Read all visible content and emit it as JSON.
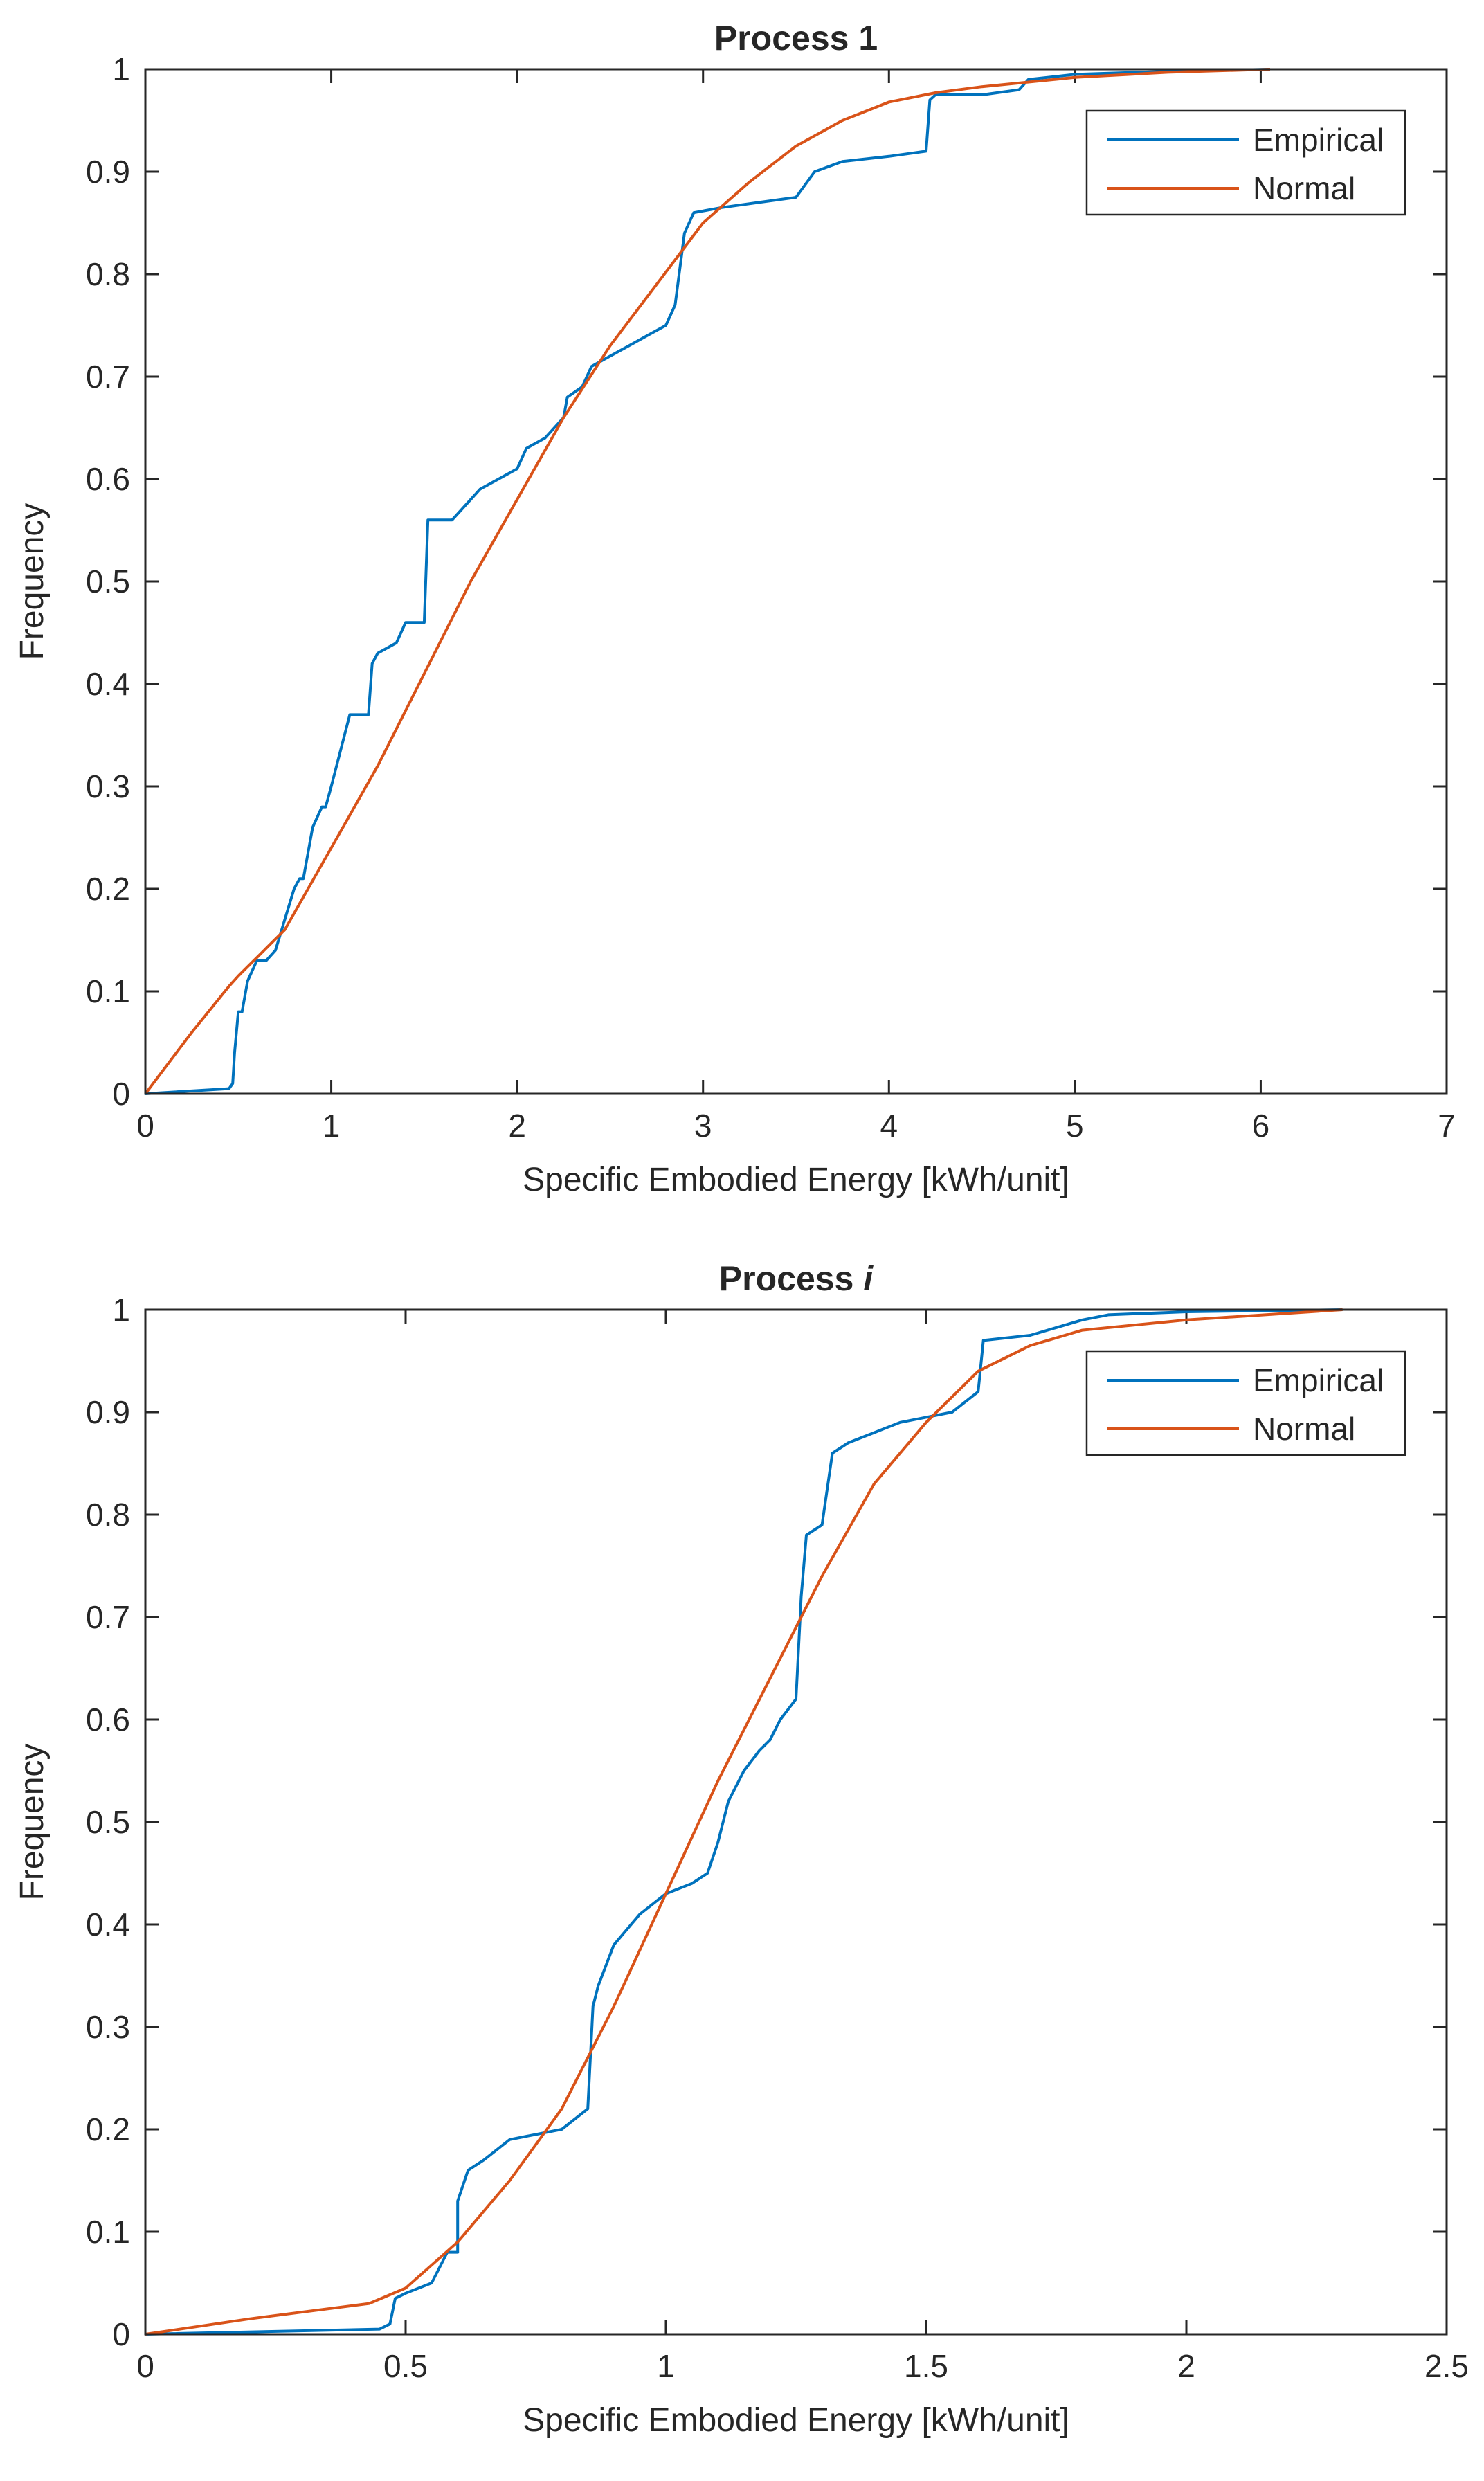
{
  "chart_data": [
    {
      "type": "line",
      "title": "Process 1",
      "title_italic_part": "",
      "xlabel": "Specific Embodied Energy [kWh/unit]",
      "ylabel": "Frequency",
      "xlim": [
        0,
        7
      ],
      "ylim": [
        0,
        1
      ],
      "xticks": [
        0,
        1,
        2,
        3,
        4,
        5,
        6,
        7
      ],
      "xtick_labels": [
        "0",
        "1",
        "2",
        "3",
        "4",
        "5",
        "6",
        "7"
      ],
      "yticks": [
        0,
        0.1,
        0.2,
        0.3,
        0.4,
        0.5,
        0.6,
        0.7,
        0.8,
        0.9,
        1
      ],
      "ytick_labels": [
        "0",
        "0.1",
        "0.2",
        "0.3",
        "0.4",
        "0.5",
        "0.6",
        "0.7",
        "0.8",
        "0.9",
        "1"
      ],
      "legend": {
        "position": "top-right",
        "entries": [
          "Empirical",
          "Normal"
        ]
      },
      "series": [
        {
          "name": "Empirical",
          "color": "#0072BD",
          "x": [
            0,
            0.45,
            0.47,
            0.48,
            0.5,
            0.52,
            0.55,
            0.6,
            0.62,
            0.65,
            0.7,
            0.8,
            0.83,
            0.85,
            0.9,
            0.95,
            0.97,
            1.0,
            1.1,
            1.2,
            1.22,
            1.25,
            1.35,
            1.4,
            1.5,
            1.52,
            1.65,
            1.7,
            1.75,
            1.8,
            1.9,
            2.0,
            2.05,
            2.15,
            2.25,
            2.27,
            2.35,
            2.4,
            2.5,
            2.6,
            2.7,
            2.8,
            2.85,
            2.9,
            2.95,
            3.1,
            3.3,
            3.5,
            3.6,
            3.75,
            4.0,
            4.2,
            4.22,
            4.25,
            4.5,
            4.7,
            4.75,
            5.0,
            5.5,
            6.05
          ],
          "y": [
            0,
            0.005,
            0.01,
            0.04,
            0.08,
            0.08,
            0.11,
            0.13,
            0.13,
            0.13,
            0.14,
            0.2,
            0.21,
            0.21,
            0.26,
            0.28,
            0.28,
            0.3,
            0.37,
            0.37,
            0.42,
            0.43,
            0.44,
            0.46,
            0.46,
            0.56,
            0.56,
            0.57,
            0.58,
            0.59,
            0.6,
            0.61,
            0.63,
            0.64,
            0.66,
            0.68,
            0.69,
            0.71,
            0.72,
            0.73,
            0.74,
            0.75,
            0.77,
            0.84,
            0.86,
            0.865,
            0.87,
            0.875,
            0.9,
            0.91,
            0.915,
            0.92,
            0.97,
            0.975,
            0.975,
            0.98,
            0.99,
            0.995,
            0.998,
            1
          ]
        },
        {
          "name": "Normal",
          "color": "#D95319",
          "x": [
            0,
            0.25,
            0.45,
            0.5,
            0.75,
            1.0,
            1.25,
            1.5,
            1.75,
            2.0,
            2.25,
            2.5,
            2.75,
            3.0,
            3.25,
            3.5,
            3.75,
            4.0,
            4.25,
            4.5,
            5.0,
            5.5,
            6.05
          ],
          "y": [
            0,
            0.06,
            0.105,
            0.115,
            0.16,
            0.24,
            0.32,
            0.41,
            0.5,
            0.58,
            0.66,
            0.73,
            0.79,
            0.85,
            0.89,
            0.925,
            0.95,
            0.968,
            0.977,
            0.983,
            0.992,
            0.997,
            1
          ]
        }
      ]
    },
    {
      "type": "line",
      "title": "Process ",
      "title_italic_part": "i",
      "xlabel": "Specific Embodied Energy [kWh/unit]",
      "ylabel": "Frequency",
      "xlim": [
        0,
        2.5
      ],
      "ylim": [
        0,
        1
      ],
      "xticks": [
        0,
        0.5,
        1,
        1.5,
        2,
        2.5
      ],
      "xtick_labels": [
        "0",
        "0.5",
        "1",
        "1.5",
        "2",
        "2.5"
      ],
      "yticks": [
        0,
        0.1,
        0.2,
        0.3,
        0.4,
        0.5,
        0.6,
        0.7,
        0.8,
        0.9,
        1
      ],
      "ytick_labels": [
        "0",
        "0.1",
        "0.2",
        "0.3",
        "0.4",
        "0.5",
        "0.6",
        "0.7",
        "0.8",
        "0.9",
        "1"
      ],
      "legend": {
        "position": "top-right",
        "entries": [
          "Empirical",
          "Normal"
        ]
      },
      "series": [
        {
          "name": "Empirical",
          "color": "#0072BD",
          "x": [
            0,
            0.45,
            0.47,
            0.48,
            0.5,
            0.55,
            0.58,
            0.6,
            0.6,
            0.62,
            0.65,
            0.7,
            0.75,
            0.8,
            0.85,
            0.86,
            0.87,
            0.9,
            0.95,
            1.0,
            1.05,
            1.08,
            1.1,
            1.12,
            1.15,
            1.18,
            1.2,
            1.22,
            1.25,
            1.26,
            1.27,
            1.3,
            1.32,
            1.35,
            1.4,
            1.45,
            1.5,
            1.55,
            1.6,
            1.61,
            1.7,
            1.8,
            1.85,
            2.0,
            2.3
          ],
          "y": [
            0,
            0.005,
            0.01,
            0.035,
            0.04,
            0.05,
            0.08,
            0.08,
            0.13,
            0.16,
            0.17,
            0.19,
            0.195,
            0.2,
            0.22,
            0.32,
            0.34,
            0.38,
            0.41,
            0.43,
            0.44,
            0.45,
            0.48,
            0.52,
            0.55,
            0.57,
            0.58,
            0.6,
            0.62,
            0.72,
            0.78,
            0.79,
            0.86,
            0.87,
            0.88,
            0.89,
            0.895,
            0.9,
            0.92,
            0.97,
            0.975,
            0.99,
            0.995,
            0.998,
            1
          ]
        },
        {
          "name": "Normal",
          "color": "#D95319",
          "x": [
            0,
            0.2,
            0.43,
            0.5,
            0.6,
            0.7,
            0.8,
            0.9,
            1.0,
            1.1,
            1.2,
            1.3,
            1.4,
            1.5,
            1.6,
            1.7,
            1.8,
            2.0,
            2.3
          ],
          "y": [
            0,
            0.015,
            0.03,
            0.045,
            0.09,
            0.15,
            0.22,
            0.32,
            0.43,
            0.54,
            0.64,
            0.74,
            0.83,
            0.89,
            0.94,
            0.965,
            0.98,
            0.99,
            1
          ]
        }
      ]
    }
  ]
}
